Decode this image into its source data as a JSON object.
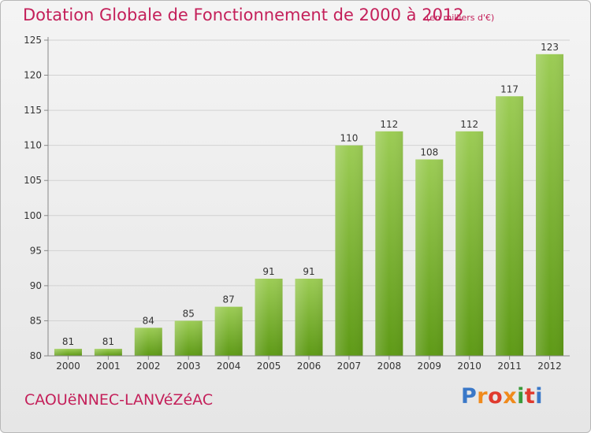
{
  "title": "Dotation Globale de Fonctionnement de 2000 à 2012",
  "unit_note": "(en milliers d'€)",
  "commune": "CAOUëNNEC-LANVéZéAC",
  "brand": {
    "text": "Proxiti",
    "letter_colors": [
      "#3a78c8",
      "#f08a1c",
      "#e03a2e",
      "#f08a1c",
      "#3a9a3a",
      "#e03a2e",
      "#3a78c8"
    ]
  },
  "colors": {
    "bar_top": "#9ccc55",
    "bar_bottom": "#5e9a16",
    "title": "#c4205a",
    "grid": "#d2d2d2"
  },
  "chart_data": {
    "type": "bar",
    "title": "Dotation Globale de Fonctionnement de 2000 à 2012",
    "xlabel": "",
    "ylabel": "",
    "categories": [
      "2000",
      "2001",
      "2002",
      "2003",
      "2004",
      "2005",
      "2006",
      "2007",
      "2008",
      "2009",
      "2010",
      "2011",
      "2012"
    ],
    "values": [
      81,
      81,
      84,
      85,
      87,
      91,
      91,
      110,
      112,
      108,
      112,
      117,
      123
    ],
    "ylim": [
      80,
      125
    ],
    "yticks": [
      80,
      85,
      90,
      95,
      100,
      105,
      110,
      115,
      120,
      125
    ],
    "grid": true,
    "data_labels": true
  }
}
